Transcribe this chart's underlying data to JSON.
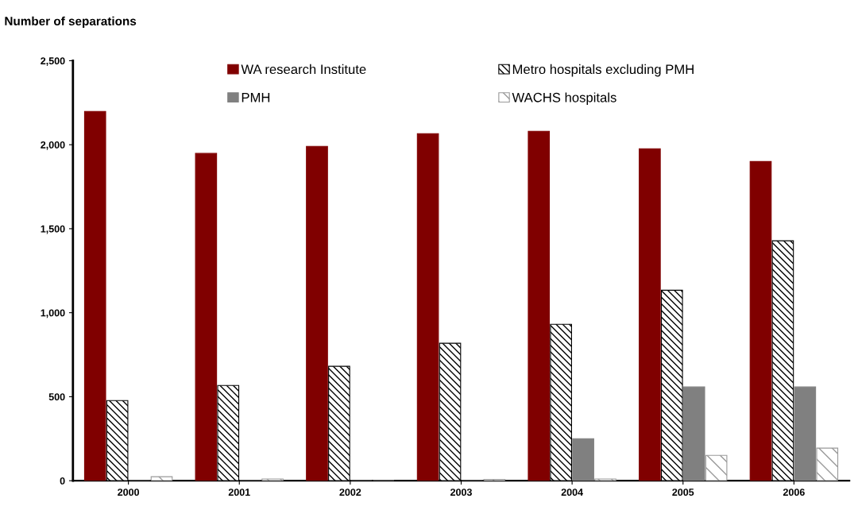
{
  "chart_data": {
    "type": "bar",
    "title": "Number of separations",
    "categories": [
      "2000",
      "2001",
      "2002",
      "2003",
      "2004",
      "2005",
      "2006"
    ],
    "series": [
      {
        "name": "WA research Institute",
        "color": "#800000",
        "values": [
          2198,
          1948,
          1990,
          2066,
          2080,
          1976,
          1900
        ]
      },
      {
        "name": "Metro hospitals excluding PMH",
        "color": "#000000",
        "values": [
          477,
          567,
          681,
          818,
          931,
          1134,
          1428
        ]
      },
      {
        "name": "PMH",
        "color": "#808080",
        "values": [
          0,
          0,
          0,
          0,
          250,
          558,
          558
        ]
      },
      {
        "name": "WACHS hospitals",
        "color": "#999999",
        "values": [
          24,
          10,
          0,
          8,
          10,
          151,
          194
        ]
      }
    ],
    "ylim": [
      0,
      2500
    ],
    "yticks": [
      0,
      {
        "value": 500,
        "label": "500"
      },
      {
        "value": 1000,
        "label": "1,000"
      },
      {
        "value": 1500,
        "label": "1,500"
      },
      {
        "value": 2000,
        "label": "2,000"
      },
      {
        "value": 2500,
        "label": "2,500"
      }
    ],
    "legend": "top",
    "grid": false
  }
}
